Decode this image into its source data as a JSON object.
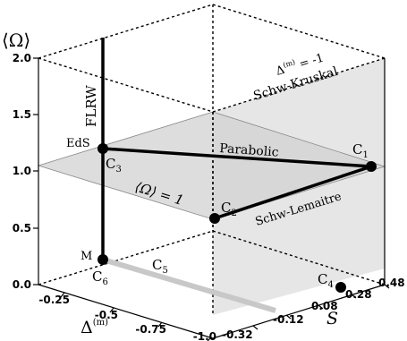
{
  "axes": {
    "omega_label": "⟨Ω⟩",
    "omega_ticks": [
      "0.0",
      "0.5",
      "1.0",
      "1.5",
      "2.0"
    ],
    "delta_label": "Δ",
    "delta_superscript": "(m)",
    "delta_ticks": [
      "-0.25",
      "-0.5",
      "-0.75",
      "-1.0"
    ],
    "s_label": "S",
    "s_ticks": [
      "-0.32",
      "-0.12",
      "0.08",
      "0.28",
      "0.48"
    ]
  },
  "planes": {
    "omega_one": "⟨Ω⟩ = 1",
    "delta_minus_one_prefix": "Δ",
    "delta_minus_one_sup": "(m)",
    "delta_minus_one_suffix": " = -1"
  },
  "curves": {
    "flrw": "FLRW",
    "parabolic": "Parabolic",
    "schw_kruskal": "Schw-Kruskal",
    "schw_lemaitre": "Schw-Lemaitre"
  },
  "points": {
    "eds": "EdS",
    "m": "M",
    "c1": "C",
    "c1_sub": "1",
    "c2": "C",
    "c2_sub": "2",
    "c3": "C",
    "c3_sub": "3",
    "c4": "C",
    "c4_sub": "4",
    "c5": "C",
    "c5_sub": "5",
    "c6": "C",
    "c6_sub": "6"
  },
  "colors": {
    "line": "#000000",
    "plane_fill": "#d9d9d9",
    "gray_segment": "#c8c8c8"
  }
}
